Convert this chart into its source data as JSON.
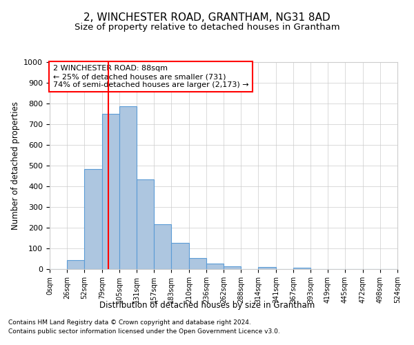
{
  "title": "2, WINCHESTER ROAD, GRANTHAM, NG31 8AD",
  "subtitle": "Size of property relative to detached houses in Grantham",
  "xlabel": "Distribution of detached houses by size in Grantham",
  "ylabel": "Number of detached properties",
  "bar_values": [
    0,
    42,
    483,
    750,
    787,
    435,
    218,
    128,
    52,
    27,
    15,
    0,
    10,
    0,
    8,
    0,
    0,
    0,
    0,
    0
  ],
  "bin_edges": [
    0,
    26,
    52,
    79,
    105,
    131,
    157,
    183,
    210,
    236,
    262,
    288,
    314,
    341,
    367,
    393,
    419,
    445,
    472,
    498,
    524
  ],
  "tick_labels": [
    "0sqm",
    "26sqm",
    "52sqm",
    "79sqm",
    "105sqm",
    "131sqm",
    "157sqm",
    "183sqm",
    "210sqm",
    "236sqm",
    "262sqm",
    "288sqm",
    "314sqm",
    "341sqm",
    "367sqm",
    "393sqm",
    "419sqm",
    "445sqm",
    "472sqm",
    "498sqm",
    "524sqm"
  ],
  "bar_color": "#adc6e0",
  "bar_edge_color": "#5b9bd5",
  "red_line_x": 88,
  "ylim": [
    0,
    1000
  ],
  "yticks": [
    0,
    100,
    200,
    300,
    400,
    500,
    600,
    700,
    800,
    900,
    1000
  ],
  "annotation_text": "2 WINCHESTER ROAD: 88sqm\n← 25% of detached houses are smaller (731)\n74% of semi-detached houses are larger (2,173) →",
  "footnote1": "Contains HM Land Registry data © Crown copyright and database right 2024.",
  "footnote2": "Contains public sector information licensed under the Open Government Licence v3.0.",
  "title_fontsize": 11,
  "subtitle_fontsize": 9.5,
  "background_color": "#ffffff",
  "grid_color": "#cccccc"
}
